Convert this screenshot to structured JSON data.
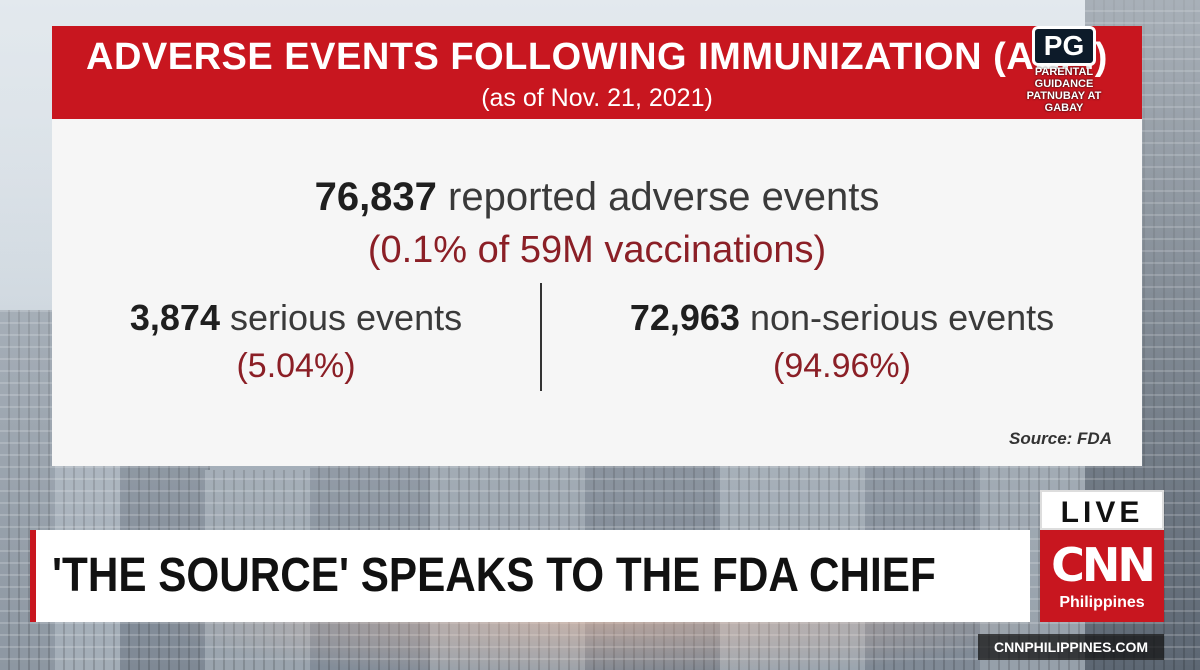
{
  "graphic": {
    "title": "ADVERSE EVENTS FOLLOWING IMMUNIZATION (AEFI)",
    "subtitle": "(as of Nov. 21, 2021)",
    "total": {
      "count": "76,837",
      "label": "reported adverse events",
      "percentage": "(0.1% of 59M vaccinations)"
    },
    "serious": {
      "count": "3,874",
      "label": "serious events",
      "percentage": "(5.04%)"
    },
    "non_serious": {
      "count": "72,963",
      "label": "non-serious events",
      "percentage": "(94.96%)"
    },
    "source": "Source: FDA"
  },
  "rating": {
    "badge": "PG",
    "line1": "PARENTAL GUIDANCE",
    "line2": "PATNUBAY AT GABAY"
  },
  "lower_third": {
    "headline": "'THE SOURCE' SPEAKS TO THE FDA CHIEF",
    "live_label": "LIVE",
    "network": "CNN",
    "network_country": "Philippines",
    "website": "CNNPHILIPPINES.COM"
  },
  "colors": {
    "brand_red": "#c8161f",
    "percentage_text": "#8b1f26"
  }
}
